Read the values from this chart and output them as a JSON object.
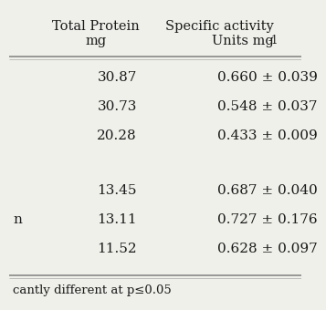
{
  "col1_header_line1": "Total Protein",
  "col1_header_line2": "mg",
  "col2_header_line1": "Specific activity",
  "col2_header_line2": "Units mg⁻¹",
  "col2_header_line2_plain": "Units mg-",
  "col2_header_superscript": "1",
  "group1": [
    [
      "30.87",
      "0.660 ± 0.039"
    ],
    [
      "30.73",
      "0.548 ± 0.037"
    ],
    [
      "20.28",
      "0.433 ± 0.009"
    ]
  ],
  "group2": [
    [
      "13.45",
      "0.687 ± 0.040",
      ""
    ],
    [
      "13.11",
      "0.727 ± 0.176",
      "n"
    ],
    [
      "11.52",
      "0.628 ± 0.097",
      ""
    ]
  ],
  "footnote": "cantly different at p≤0.05",
  "bg_color": "#f0f0eb",
  "text_color": "#1a1a1a",
  "line_color": "#888888",
  "header_fontsize": 10.5,
  "data_fontsize": 11,
  "footnote_fontsize": 9.5
}
